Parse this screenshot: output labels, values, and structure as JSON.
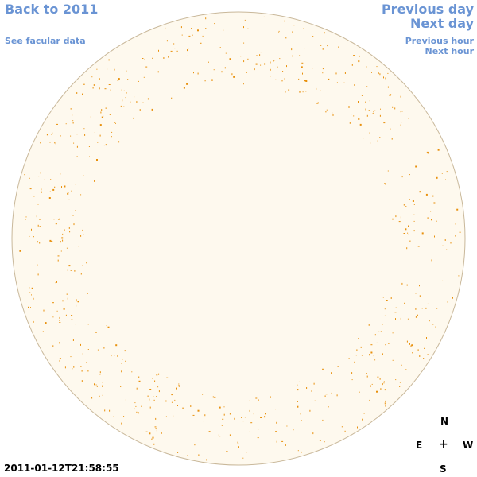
{
  "nav": {
    "back_label": "Back to 2011",
    "facular_label": "See facular data",
    "prev_day_label": "Previous day",
    "next_day_label": "Next day",
    "prev_hour_label": "Previous hour",
    "next_hour_label": "Next hour"
  },
  "compass": {
    "north": "N",
    "south": "S",
    "east": "E",
    "west": "W",
    "center": "+"
  },
  "timestamp": "2011-01-12T21:58:55",
  "colors": {
    "link": "#6a94d4",
    "disk_fill": "#fef9ee",
    "disk_outline": "#c9b89a",
    "facula": "#e8900c"
  }
}
